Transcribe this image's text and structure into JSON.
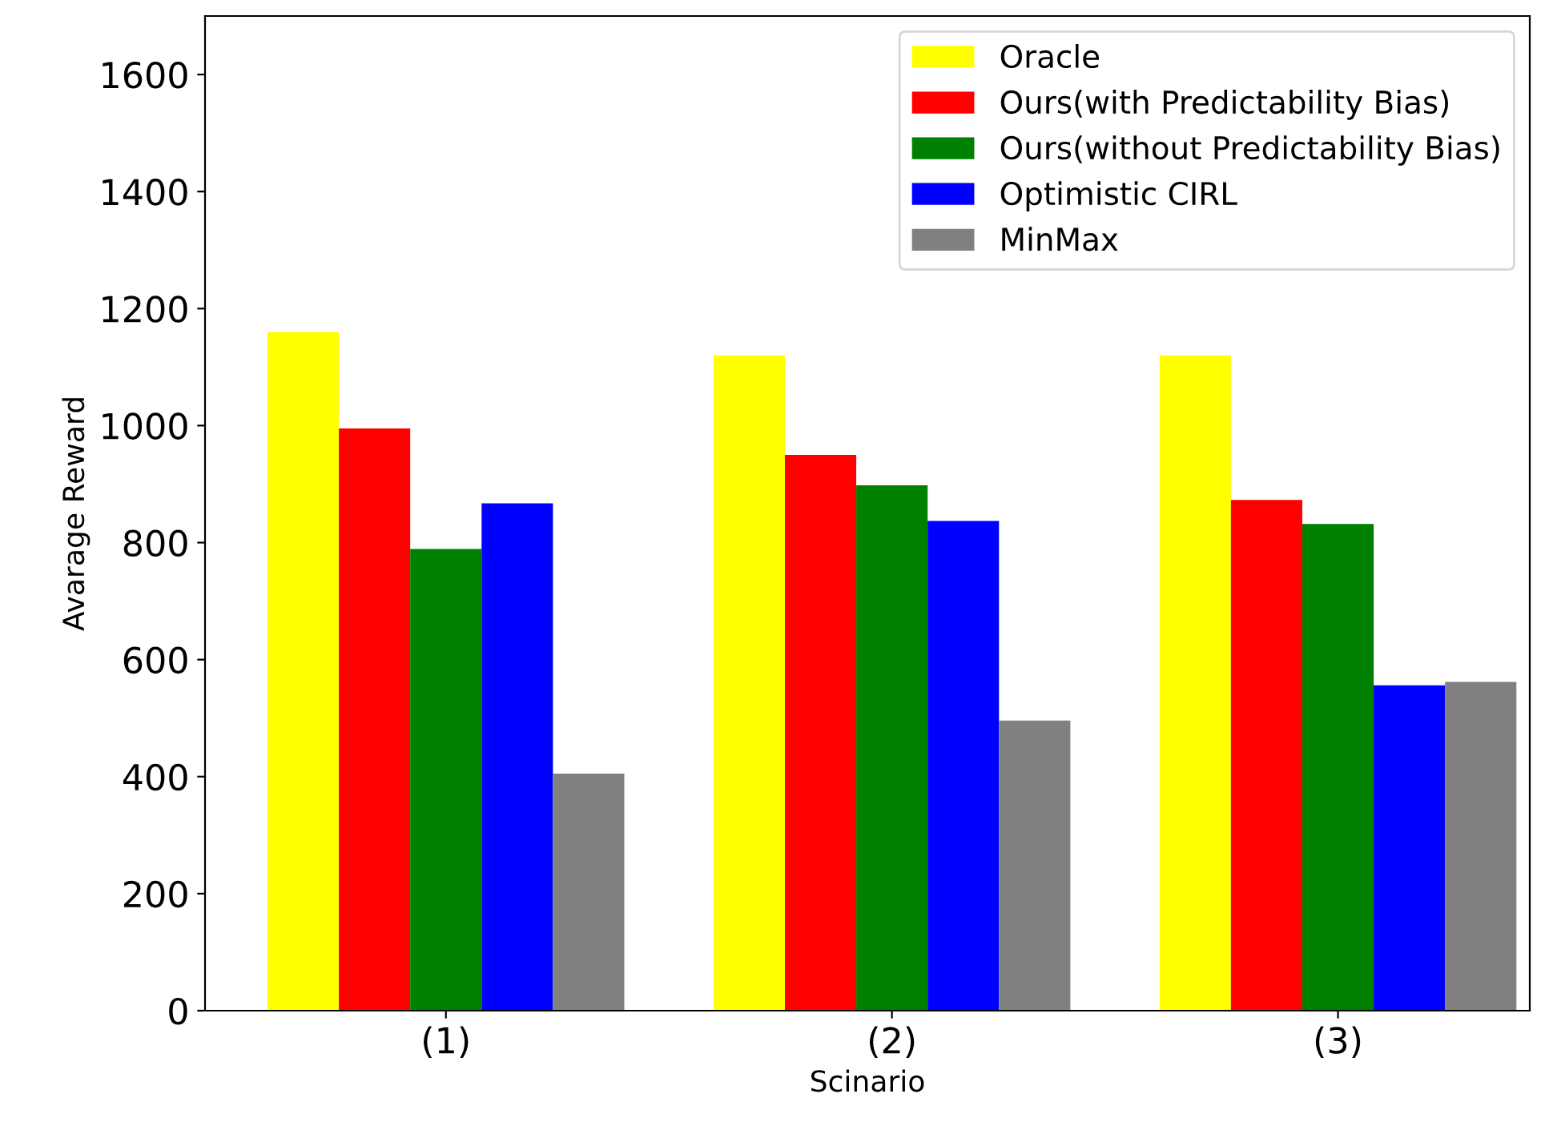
{
  "chart_data": {
    "type": "bar",
    "xlabel": "Scinario",
    "ylabel": "Avarage Reward",
    "categories": [
      "(1)",
      "(2)",
      "(3)"
    ],
    "series": [
      {
        "name": "Oracle",
        "color": "#ffff00",
        "values": [
          1160,
          1120,
          1120
        ]
      },
      {
        "name": "Ours(with Predictability Bias)",
        "color": "#ff0000",
        "values": [
          995,
          950,
          873
        ]
      },
      {
        "name": "Ours(without Predictability Bias)",
        "color": "#008000",
        "values": [
          789,
          898,
          832
        ]
      },
      {
        "name": "Optimistic CIRL",
        "color": "#0000ff",
        "values": [
          867,
          837,
          556
        ]
      },
      {
        "name": "MinMax",
        "color": "#808080",
        "values": [
          405,
          496,
          562
        ]
      }
    ],
    "ylim": [
      0,
      1700
    ],
    "yticks": [
      0,
      200,
      400,
      600,
      800,
      1000,
      1200,
      1400,
      1600
    ],
    "grid": false,
    "legend": "top right"
  }
}
